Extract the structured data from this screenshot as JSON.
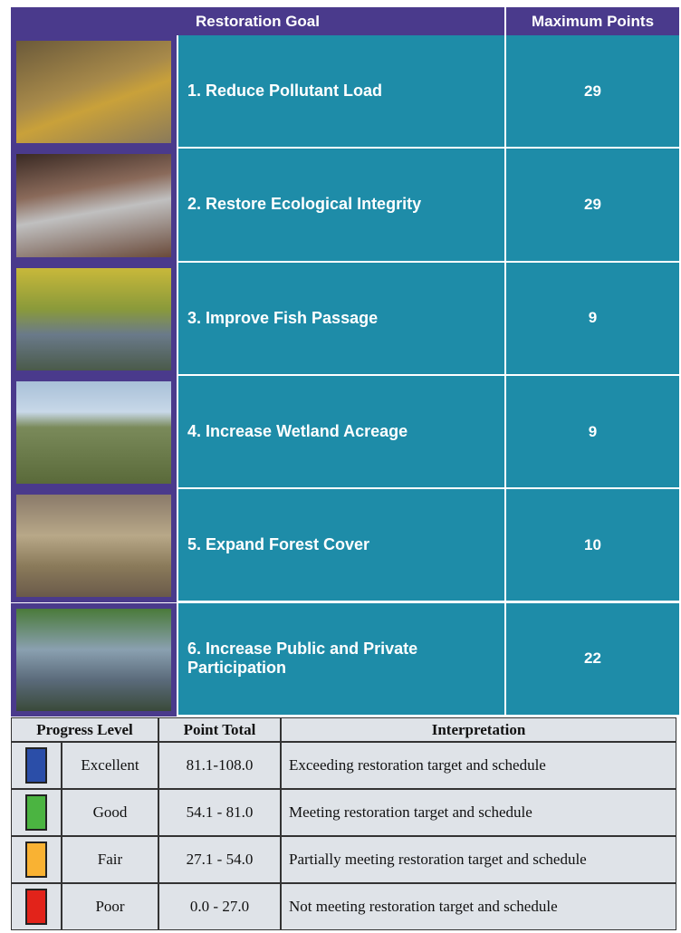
{
  "goals_table": {
    "header": [
      "Restoration Goal",
      "Maximum Points"
    ],
    "rows": [
      {
        "goal": "1. Reduce Pollutant Load",
        "points": 29
      },
      {
        "goal": "2.  Restore Ecological Integrity",
        "points": 29
      },
      {
        "goal": "3. Improve Fish Passage",
        "points": 9
      },
      {
        "goal": "4. Increase Wetland Acreage",
        "points": 9
      },
      {
        "goal": "5.  Expand Forest Cover",
        "points": 10
      },
      {
        "goal": "6. Increase Public and Private Participation",
        "points": 22
      }
    ]
  },
  "progress_table": {
    "header": [
      "Progress Level",
      "Point Total",
      "Interpretation"
    ],
    "rows": [
      {
        "color": "#2b4ea8",
        "level": "Excellent",
        "range": "81.1-108.0",
        "interpretation": "Exceeding restoration target and schedule"
      },
      {
        "color": "#4bb441",
        "level": "Good",
        "range": "54.1 - 81.0",
        "interpretation": "Meeting restoration target and schedule"
      },
      {
        "color": "#f9b233",
        "level": "Fair",
        "range": "27.1 - 54.0",
        "interpretation": "Partially meeting restoration target and schedule"
      },
      {
        "color": "#e2231a",
        "level": "Poor",
        "range": "0.0 - 27.0",
        "interpretation": "Not meeting restoration target and schedule"
      }
    ]
  }
}
